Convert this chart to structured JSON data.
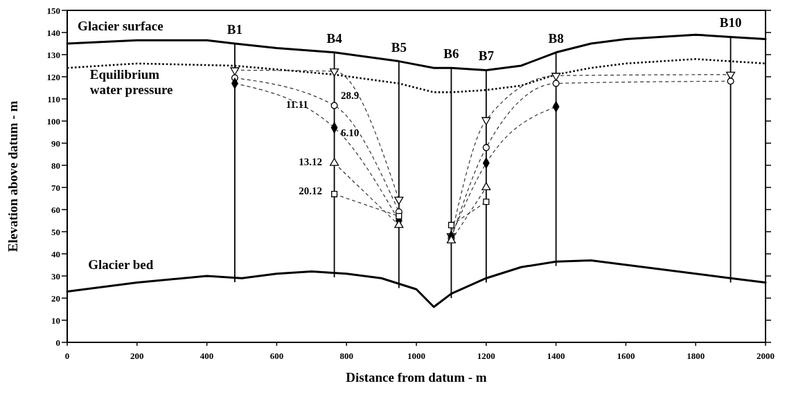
{
  "chart_data": {
    "type": "line",
    "xlabel": "Distance from datum - m",
    "ylabel": "Elevation above datum - m",
    "xlim": [
      0,
      2000
    ],
    "ylim": [
      0,
      150
    ],
    "xticks": [
      0,
      200,
      400,
      600,
      800,
      1000,
      1200,
      1400,
      1600,
      1800,
      2000
    ],
    "yticks": [
      0,
      10,
      20,
      30,
      40,
      50,
      60,
      70,
      80,
      90,
      100,
      110,
      120,
      130,
      140,
      150
    ],
    "grid": false,
    "ref_lines": [
      {
        "axis": "x",
        "value": 480,
        "label": "B1"
      },
      {
        "axis": "x",
        "value": 765,
        "label": "B4"
      },
      {
        "axis": "x",
        "value": 950,
        "label": "B5"
      },
      {
        "axis": "x",
        "value": 1100,
        "label": "B6"
      },
      {
        "axis": "x",
        "value": 1200,
        "label": "B7"
      },
      {
        "axis": "x",
        "value": 1400,
        "label": "B8"
      },
      {
        "axis": "x",
        "value": 1900,
        "label": "B10"
      }
    ],
    "series": [
      {
        "name": "Glacier surface",
        "color": "#000000",
        "line_style": "solid",
        "marker": "none",
        "x": [
          0,
          200,
          400,
          480,
          600,
          765,
          950,
          1050,
          1100,
          1200,
          1300,
          1400,
          1500,
          1600,
          1800,
          1900,
          2000
        ],
        "values": [
          135,
          136.5,
          136.5,
          135,
          133,
          131,
          127,
          124,
          124,
          123,
          125,
          131,
          135,
          137,
          139,
          138,
          137
        ]
      },
      {
        "name": "Equilibrium water pressure",
        "color": "#000000",
        "line_style": "dotted",
        "marker": "none",
        "x": [
          0,
          200,
          480,
          765,
          950,
          1050,
          1100,
          1200,
          1300,
          1400,
          1500,
          1600,
          1800,
          1900,
          2000
        ],
        "values": [
          124,
          126,
          125,
          121,
          117,
          113,
          113,
          114,
          116,
          121,
          124,
          126,
          128,
          127,
          126
        ]
      },
      {
        "name": "Glacier bed",
        "color": "#000000",
        "line_style": "solid",
        "marker": "none",
        "x": [
          0,
          200,
          400,
          500,
          600,
          700,
          800,
          900,
          1000,
          1050,
          1100,
          1200,
          1300,
          1400,
          1500,
          1900,
          2000
        ],
        "values": [
          23,
          27,
          30,
          29,
          31,
          32,
          31,
          29,
          24,
          16,
          22,
          29,
          34,
          36.5,
          37,
          29,
          27
        ]
      },
      {
        "name": "28.9",
        "color": "#333333",
        "line_style": "dashed",
        "marker": "triangle-down",
        "x": [
          480,
          765,
          950,
          1025,
          1100,
          1200,
          1400,
          1900
        ],
        "values": [
          123,
          122.5,
          64.5,
          null,
          48,
          100.5,
          120.5,
          121
        ]
      },
      {
        "name": "6.10",
        "color": "#333333",
        "line_style": "dashed",
        "marker": "circle",
        "x": [
          480,
          765,
          950,
          1025,
          1100,
          1200,
          1400,
          1900
        ],
        "values": [
          119.5,
          107,
          59,
          null,
          47,
          88,
          117,
          118
        ]
      },
      {
        "name": "11.11",
        "color": "#333333",
        "line_style": "dashed",
        "marker": "diamond",
        "x": [
          480,
          765,
          950,
          1025,
          1100,
          1200,
          1400
        ],
        "values": [
          117,
          97,
          55,
          null,
          48,
          81,
          106.5
        ]
      },
      {
        "name": "13.12",
        "color": "#333333",
        "line_style": "dashed",
        "marker": "triangle",
        "x": [
          765,
          950,
          1025,
          1100,
          1200
        ],
        "values": [
          81,
          53,
          null,
          46,
          70
        ]
      },
      {
        "name": "20.12",
        "color": "#333333",
        "line_style": "dashed",
        "marker": "square",
        "x": [
          765,
          950,
          1025,
          1100,
          1200
        ],
        "values": [
          67,
          57,
          null,
          53,
          63.5
        ]
      }
    ]
  }
}
